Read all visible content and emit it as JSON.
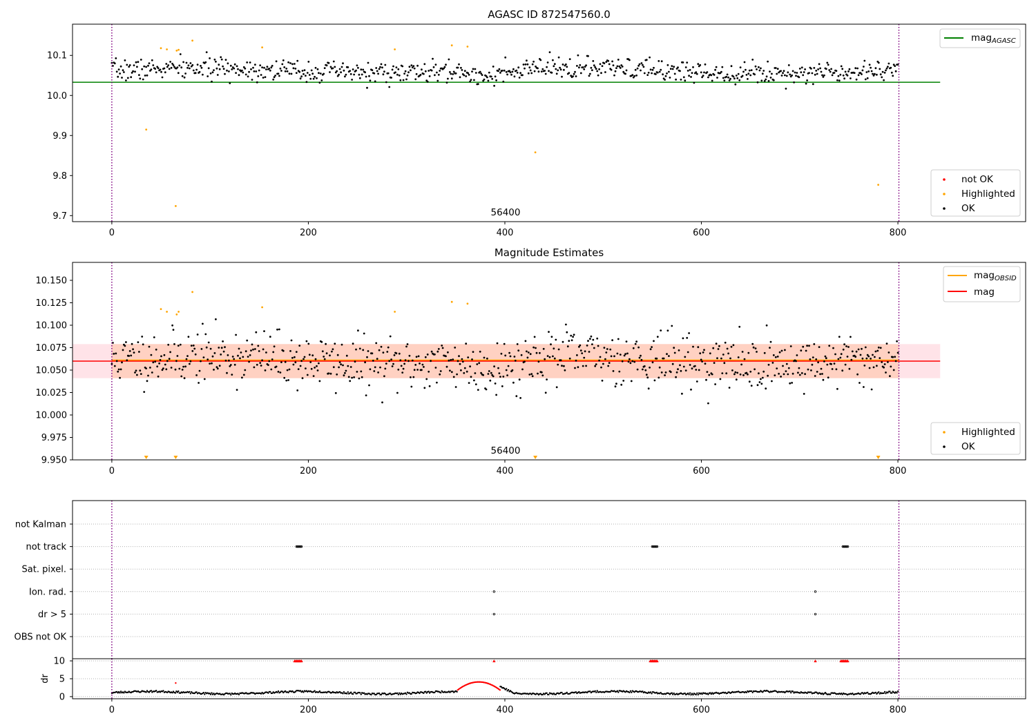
{
  "chart_data": [
    {
      "panel": "top",
      "type": "scatter",
      "title": "AGASC ID 872547560.0",
      "xlim": [
        -40,
        930
      ],
      "ylim": [
        9.685,
        10.178
      ],
      "xticks": [
        0,
        200,
        400,
        600,
        800
      ],
      "yticks": [
        9.7,
        9.8,
        9.9,
        10.0,
        10.1
      ],
      "ytick_labels": [
        "9.7",
        "9.8",
        "9.9",
        "10.0",
        "10.1"
      ],
      "grid": false,
      "vlines": [
        0,
        801
      ],
      "hline": {
        "y": 10.033,
        "x_end": 843,
        "color": "#008000"
      },
      "annotation": {
        "x": 400,
        "text": "56400"
      },
      "legend_line": {
        "position": "top-right",
        "entries": [
          {
            "label_main": "mag",
            "label_sub": "AGASC",
            "color": "#008000"
          }
        ]
      },
      "legend_points": {
        "position": "bottom-right",
        "entries": [
          {
            "label": "not OK",
            "color": "#ff0000"
          },
          {
            "label": "Highlighted",
            "color": "#ffa500"
          },
          {
            "label": "OK",
            "color": "#000000"
          }
        ]
      },
      "series": [
        {
          "name": "OK",
          "color": "#000000",
          "x_range": [
            0,
            800
          ],
          "n_points": 780,
          "y_center": 10.062,
          "y_spread": 0.022
        },
        {
          "name": "Highlighted",
          "color": "#ffa500",
          "points": [
            [
              35,
              9.915
            ],
            [
              50,
              10.118
            ],
            [
              56,
              10.115
            ],
            [
              65,
              9.724
            ],
            [
              66,
              10.112
            ],
            [
              68,
              10.114
            ],
            [
              82,
              10.137
            ],
            [
              153,
              10.12
            ],
            [
              288,
              10.115
            ],
            [
              346,
              10.125
            ],
            [
              362,
              10.122
            ],
            [
              431,
              9.858
            ],
            [
              780,
              9.777
            ]
          ]
        }
      ]
    },
    {
      "panel": "middle",
      "type": "scatter",
      "title": "Magnitude Estimates",
      "xlim": [
        -40,
        930
      ],
      "ylim": [
        9.95,
        10.17
      ],
      "xticks": [
        0,
        200,
        400,
        600,
        800
      ],
      "yticks": [
        9.95,
        9.975,
        10.0,
        10.025,
        10.05,
        10.075,
        10.1,
        10.125,
        10.15
      ],
      "ytick_labels": [
        "9.950",
        "9.975",
        "10.000",
        "10.025",
        "10.050",
        "10.075",
        "10.100",
        "10.125",
        "10.150"
      ],
      "grid": false,
      "vlines": [
        0,
        801
      ],
      "band": {
        "y_low": 10.041,
        "y_high": 10.079,
        "x_end": 843
      },
      "lines": [
        {
          "name": "mag_OBSID",
          "y": 10.061,
          "color": "#ffa500"
        },
        {
          "name": "mag",
          "y": 10.06,
          "color": "#ff0000"
        }
      ],
      "annotation": {
        "x": 400,
        "text": "56400"
      },
      "legend_line": {
        "position": "top-right",
        "entries": [
          {
            "label_main": "mag",
            "label_sub": "OBSID",
            "color": "#ffa500"
          },
          {
            "label_main": "mag",
            "label_sub": "",
            "color": "#ff0000"
          }
        ]
      },
      "legend_points": {
        "position": "bottom-right",
        "entries": [
          {
            "label": "Highlighted",
            "color": "#ffa500"
          },
          {
            "label": "OK",
            "color": "#000000"
          }
        ]
      },
      "series": [
        {
          "name": "OK",
          "color": "#000000",
          "x_range": [
            0,
            800
          ],
          "n_points": 780,
          "y_center": 10.061,
          "y_spread": 0.02
        },
        {
          "name": "Highlighted",
          "color": "#ffa500",
          "points": [
            [
              50,
              10.118
            ],
            [
              56,
              10.115
            ],
            [
              66,
              10.112
            ],
            [
              68,
              10.115
            ],
            [
              82,
              10.137
            ],
            [
              153,
              10.12
            ],
            [
              288,
              10.115
            ],
            [
              346,
              10.126
            ],
            [
              362,
              10.124
            ]
          ]
        },
        {
          "name": "Highlighted (below range)",
          "color": "#ffa500",
          "x": [
            35,
            65,
            431,
            780
          ]
        }
      ]
    },
    {
      "panel": "flags",
      "type": "scatter",
      "xlim": [
        -40,
        930
      ],
      "categories": [
        "not Kalman",
        "not track",
        "Sat. pixel.",
        "Ion. rad.",
        "dr > 5",
        "OBS not OK"
      ],
      "grid": true,
      "vlines": [
        0,
        801
      ],
      "series": [
        {
          "name": "not track",
          "x": [
            188,
            189,
            190,
            191,
            192,
            193,
            550,
            551,
            552,
            553,
            554,
            555,
            744,
            745,
            746,
            747,
            748,
            749
          ]
        },
        {
          "name": "Ion. rad.",
          "x": [
            389,
            716
          ]
        },
        {
          "name": "dr > 5",
          "x": [
            389,
            716
          ]
        }
      ]
    },
    {
      "panel": "dr",
      "type": "scatter",
      "ylabel": "dr",
      "xlim": [
        -40,
        930
      ],
      "ylim": [
        -0.6,
        10.6
      ],
      "yticks": [
        0,
        5,
        10
      ],
      "xticks": [
        0,
        200,
        400,
        600,
        800
      ],
      "grid": true,
      "vlines": [
        0,
        801
      ],
      "series": [
        {
          "name": "OK",
          "color": "#000000",
          "x_range": [
            0,
            800
          ],
          "n_points": 780,
          "y_center": 1.1,
          "y_spread": 0.5
        },
        {
          "name": "not OK (dr > 5)",
          "color": "#ff0000",
          "x": [
            186,
            187,
            188,
            189,
            190,
            191,
            192,
            193,
            389,
            548,
            549,
            550,
            551,
            552,
            553,
            554,
            555,
            716,
            742,
            743,
            744,
            745,
            746,
            747,
            748,
            749
          ],
          "y": 10
        },
        {
          "name": "not OK (bump)",
          "color": "#ff0000",
          "x_range": [
            352,
            395
          ],
          "y_peak": 4.1
        },
        {
          "name": "not OK (isolated)",
          "color": "#ff0000",
          "points": [
            [
              65,
              3.8
            ]
          ]
        }
      ]
    }
  ]
}
